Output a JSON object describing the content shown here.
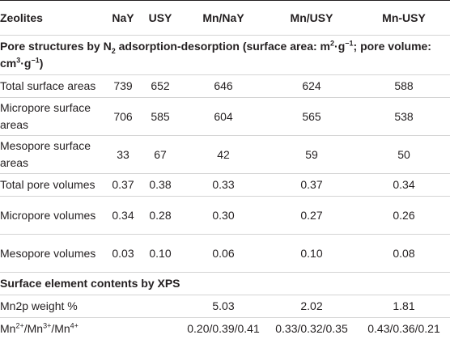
{
  "headers": [
    "Zeolites",
    "NaY",
    "USY",
    "Mn/NaY",
    "Mn/USY",
    "Mn-USY"
  ],
  "section1": {
    "part1": "Pore structures by N",
    "sub1": "2",
    "part2": " adsorption-desorption (surface area: m",
    "sup1": "2",
    "part3": "·g",
    "sup2": "−1",
    "part4": "; pore volume: cm",
    "sup3": "3",
    "part5": "·g",
    "sup4": "−1",
    "part6": ")"
  },
  "rows1": [
    {
      "label": "Total surface areas",
      "values": [
        "739",
        "652",
        "646",
        "624",
        "588"
      ]
    },
    {
      "label": "Micropore surface areas",
      "values": [
        "706",
        "585",
        "604",
        "565",
        "538"
      ]
    },
    {
      "label": "Mesopore surface areas",
      "values": [
        "33",
        "67",
        "42",
        "59",
        "50"
      ]
    },
    {
      "label": "Total pore volumes",
      "values": [
        "0.37",
        "0.38",
        "0.33",
        "0.37",
        "0.34"
      ]
    },
    {
      "label": "Micropore volumes",
      "values": [
        "0.34",
        "0.28",
        "0.30",
        "0.27",
        "0.26"
      ]
    },
    {
      "label": "Mesopore volumes",
      "values": [
        "0.03",
        "0.10",
        "0.06",
        "0.10",
        "0.08"
      ]
    }
  ],
  "section2": "Surface element contents by XPS",
  "rows2": [
    {
      "label": "Mn2p weight %",
      "values": [
        "",
        "",
        "5.03",
        "2.02",
        "1.81"
      ]
    }
  ],
  "ratio_row": {
    "mn": "Mn",
    "s2": "2+",
    "s3": "3+",
    "s4": "4+",
    "slash": "/",
    "values": [
      "",
      "",
      "0.20/0.39/0.41",
      "0.33/0.32/0.35",
      "0.43/0.36/0.21"
    ]
  }
}
